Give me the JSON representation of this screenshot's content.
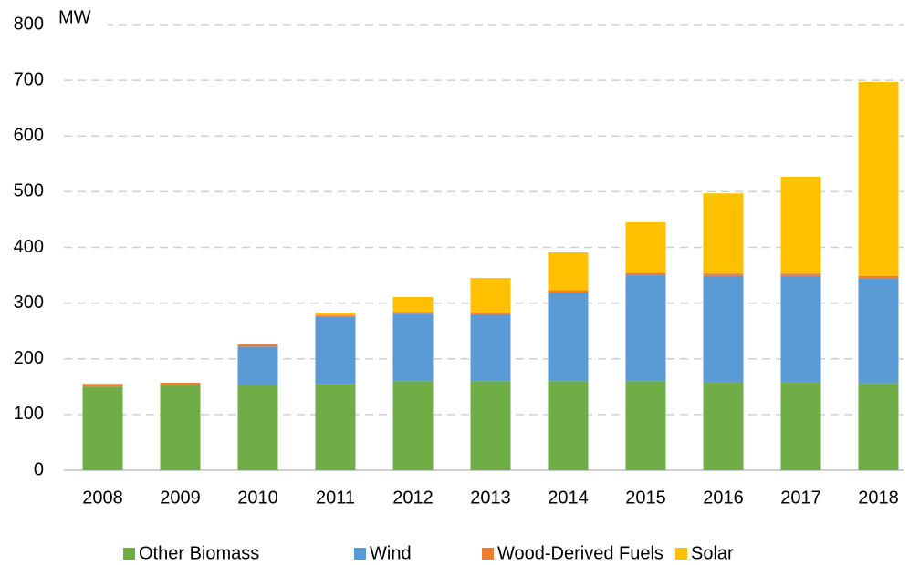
{
  "chart_data": {
    "type": "stacked_bar",
    "y_label": "MW",
    "categories": [
      "2008",
      "2009",
      "2010",
      "2011",
      "2012",
      "2013",
      "2014",
      "2015",
      "2016",
      "2017",
      "2018"
    ],
    "series": [
      {
        "name": "Other Biomass",
        "color": "#70ad47",
        "values": [
          150,
          153,
          153,
          155,
          160,
          160,
          160,
          160,
          158,
          158,
          156
        ]
      },
      {
        "name": "Wind",
        "color": "#5b9bd5",
        "values": [
          0,
          0,
          69,
          120,
          121,
          120,
          159,
          190,
          191,
          191,
          189
        ]
      },
      {
        "name": "Wood-Derived Fuels",
        "color": "#ed7d31",
        "values": [
          5,
          4,
          4,
          3,
          3,
          3,
          4,
          4,
          4,
          4,
          4
        ]
      },
      {
        "name": "Solar",
        "color": "#ffc000",
        "values": [
          0,
          0,
          0,
          5,
          27,
          62,
          68,
          91,
          144,
          174,
          348
        ]
      }
    ],
    "ylim": [
      0,
      800
    ],
    "yticks": [
      0,
      100,
      200,
      300,
      400,
      500,
      600,
      700,
      800
    ],
    "grid": true
  }
}
